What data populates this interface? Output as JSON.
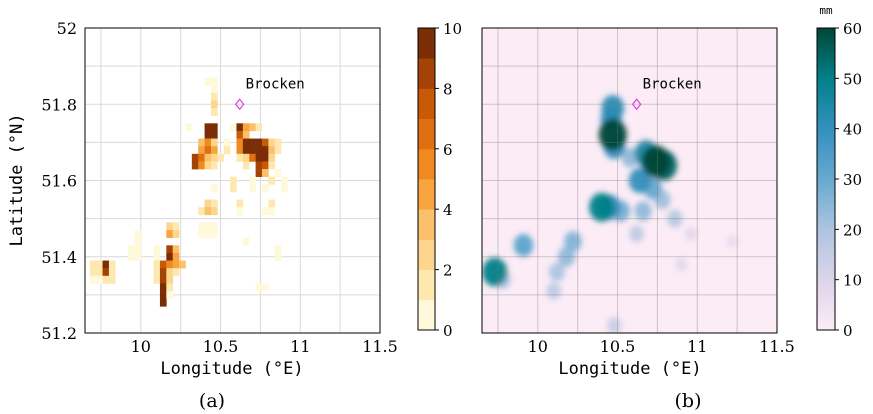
{
  "chart_data": [
    {
      "type": "heatmap",
      "panel_label": "(a)",
      "xlabel": "Longitude (°E)",
      "ylabel": "Latitude (°N)",
      "xlim": [
        9.65,
        11.5
      ],
      "ylim": [
        51.2,
        52.0
      ],
      "xticks": [
        {
          "v": 10,
          "t": "10"
        },
        {
          "v": 10.5,
          "t": "10.5"
        },
        {
          "v": 11,
          "t": "11"
        },
        {
          "v": 11.5,
          "t": "11.5"
        }
      ],
      "yticks": [
        {
          "v": 51.2,
          "t": "51.2"
        },
        {
          "v": 51.4,
          "t": "51.4"
        },
        {
          "v": 51.6,
          "t": "51.6"
        },
        {
          "v": 51.8,
          "t": "51.8"
        },
        {
          "v": 52.0,
          "t": "52"
        }
      ],
      "grid": true,
      "colorbar": {
        "range": [
          0,
          10
        ],
        "ticks": [
          0,
          2,
          4,
          6,
          8,
          10
        ],
        "unit": "",
        "palette": "orange-brown"
      },
      "cell_size": {
        "dlon": 0.04,
        "dlat": 0.02
      },
      "cells": [
        {
          "lon": 10.42,
          "lat": 51.86,
          "value": 1
        },
        {
          "lon": 10.46,
          "lat": 51.86,
          "value": 1
        },
        {
          "lon": 10.46,
          "lat": 51.84,
          "value": 1
        },
        {
          "lon": 10.46,
          "lat": 51.82,
          "value": 2
        },
        {
          "lon": 10.46,
          "lat": 51.8,
          "value": 3
        },
        {
          "lon": 10.46,
          "lat": 51.78,
          "value": 2
        },
        {
          "lon": 10.3,
          "lat": 51.74,
          "value": 1
        },
        {
          "lon": 10.42,
          "lat": 51.74,
          "value": 10
        },
        {
          "lon": 10.46,
          "lat": 51.74,
          "value": 10
        },
        {
          "lon": 10.58,
          "lat": 51.74,
          "value": 1
        },
        {
          "lon": 10.62,
          "lat": 51.74,
          "value": 10
        },
        {
          "lon": 10.66,
          "lat": 51.74,
          "value": 5
        },
        {
          "lon": 10.7,
          "lat": 51.74,
          "value": 4
        },
        {
          "lon": 10.74,
          "lat": 51.74,
          "value": 2
        },
        {
          "lon": 10.42,
          "lat": 51.72,
          "value": 10
        },
        {
          "lon": 10.46,
          "lat": 51.72,
          "value": 10
        },
        {
          "lon": 10.62,
          "lat": 51.72,
          "value": 8
        },
        {
          "lon": 10.66,
          "lat": 51.72,
          "value": 4
        },
        {
          "lon": 10.38,
          "lat": 51.7,
          "value": 4
        },
        {
          "lon": 10.42,
          "lat": 51.7,
          "value": 6
        },
        {
          "lon": 10.46,
          "lat": 51.7,
          "value": 3
        },
        {
          "lon": 10.54,
          "lat": 51.7,
          "value": 1
        },
        {
          "lon": 10.62,
          "lat": 51.7,
          "value": 6
        },
        {
          "lon": 10.66,
          "lat": 51.7,
          "value": 10
        },
        {
          "lon": 10.7,
          "lat": 51.7,
          "value": 10
        },
        {
          "lon": 10.74,
          "lat": 51.7,
          "value": 10
        },
        {
          "lon": 10.78,
          "lat": 51.7,
          "value": 8
        },
        {
          "lon": 10.82,
          "lat": 51.7,
          "value": 3
        },
        {
          "lon": 10.86,
          "lat": 51.7,
          "value": 2
        },
        {
          "lon": 10.38,
          "lat": 51.68,
          "value": 5
        },
        {
          "lon": 10.42,
          "lat": 51.68,
          "value": 7
        },
        {
          "lon": 10.46,
          "lat": 51.68,
          "value": 5
        },
        {
          "lon": 10.54,
          "lat": 51.68,
          "value": 2
        },
        {
          "lon": 10.62,
          "lat": 51.68,
          "value": 6
        },
        {
          "lon": 10.66,
          "lat": 51.68,
          "value": 10
        },
        {
          "lon": 10.7,
          "lat": 51.68,
          "value": 10
        },
        {
          "lon": 10.74,
          "lat": 51.68,
          "value": 10
        },
        {
          "lon": 10.78,
          "lat": 51.68,
          "value": 10
        },
        {
          "lon": 10.82,
          "lat": 51.68,
          "value": 4
        },
        {
          "lon": 10.86,
          "lat": 51.68,
          "value": 2
        },
        {
          "lon": 10.34,
          "lat": 51.66,
          "value": 9
        },
        {
          "lon": 10.38,
          "lat": 51.66,
          "value": 7
        },
        {
          "lon": 10.42,
          "lat": 51.66,
          "value": 4
        },
        {
          "lon": 10.46,
          "lat": 51.66,
          "value": 3
        },
        {
          "lon": 10.5,
          "lat": 51.66,
          "value": 2
        },
        {
          "lon": 10.62,
          "lat": 51.66,
          "value": 2
        },
        {
          "lon": 10.66,
          "lat": 51.66,
          "value": 3
        },
        {
          "lon": 10.7,
          "lat": 51.66,
          "value": 7
        },
        {
          "lon": 10.74,
          "lat": 51.66,
          "value": 10
        },
        {
          "lon": 10.78,
          "lat": 51.66,
          "value": 10
        },
        {
          "lon": 10.82,
          "lat": 51.66,
          "value": 3
        },
        {
          "lon": 10.34,
          "lat": 51.64,
          "value": 9
        },
        {
          "lon": 10.38,
          "lat": 51.64,
          "value": 6
        },
        {
          "lon": 10.42,
          "lat": 51.64,
          "value": 3
        },
        {
          "lon": 10.46,
          "lat": 51.64,
          "value": 2
        },
        {
          "lon": 10.66,
          "lat": 51.64,
          "value": 2
        },
        {
          "lon": 10.74,
          "lat": 51.64,
          "value": 9
        },
        {
          "lon": 10.78,
          "lat": 51.64,
          "value": 8
        },
        {
          "lon": 10.82,
          "lat": 51.64,
          "value": 2
        },
        {
          "lon": 10.74,
          "lat": 51.62,
          "value": 9
        },
        {
          "lon": 10.78,
          "lat": 51.62,
          "value": 4
        },
        {
          "lon": 10.86,
          "lat": 51.62,
          "value": 1
        },
        {
          "lon": 10.58,
          "lat": 51.6,
          "value": 2
        },
        {
          "lon": 10.7,
          "lat": 51.6,
          "value": 1
        },
        {
          "lon": 10.82,
          "lat": 51.6,
          "value": 2
        },
        {
          "lon": 10.9,
          "lat": 51.6,
          "value": 1
        },
        {
          "lon": 10.46,
          "lat": 51.58,
          "value": 1
        },
        {
          "lon": 10.58,
          "lat": 51.58,
          "value": 2
        },
        {
          "lon": 10.7,
          "lat": 51.58,
          "value": 1
        },
        {
          "lon": 10.78,
          "lat": 51.58,
          "value": 1
        },
        {
          "lon": 10.9,
          "lat": 51.58,
          "value": 1
        },
        {
          "lon": 10.42,
          "lat": 51.54,
          "value": 3
        },
        {
          "lon": 10.46,
          "lat": 51.54,
          "value": 2
        },
        {
          "lon": 10.62,
          "lat": 51.54,
          "value": 2
        },
        {
          "lon": 10.82,
          "lat": 51.54,
          "value": 2
        },
        {
          "lon": 10.38,
          "lat": 51.52,
          "value": 2
        },
        {
          "lon": 10.42,
          "lat": 51.52,
          "value": 4
        },
        {
          "lon": 10.46,
          "lat": 51.52,
          "value": 3
        },
        {
          "lon": 10.62,
          "lat": 51.52,
          "value": 1
        },
        {
          "lon": 10.78,
          "lat": 51.52,
          "value": 1
        },
        {
          "lon": 10.82,
          "lat": 51.52,
          "value": 1
        },
        {
          "lon": 10.38,
          "lat": 51.48,
          "value": 1
        },
        {
          "lon": 10.42,
          "lat": 51.48,
          "value": 1
        },
        {
          "lon": 10.46,
          "lat": 51.48,
          "value": 1
        },
        {
          "lon": 10.38,
          "lat": 51.46,
          "value": 1
        },
        {
          "lon": 10.42,
          "lat": 51.46,
          "value": 1
        },
        {
          "lon": 10.46,
          "lat": 51.46,
          "value": 1
        },
        {
          "lon": 10.18,
          "lat": 51.48,
          "value": 3
        },
        {
          "lon": 10.22,
          "lat": 51.48,
          "value": 2
        },
        {
          "lon": 10.18,
          "lat": 51.46,
          "value": 5
        },
        {
          "lon": 10.22,
          "lat": 51.46,
          "value": 3
        },
        {
          "lon": 9.98,
          "lat": 51.46,
          "value": 1
        },
        {
          "lon": 9.98,
          "lat": 51.44,
          "value": 1
        },
        {
          "lon": 10.66,
          "lat": 51.44,
          "value": 1
        },
        {
          "lon": 9.94,
          "lat": 51.42,
          "value": 1
        },
        {
          "lon": 9.98,
          "lat": 51.42,
          "value": 1
        },
        {
          "lon": 10.1,
          "lat": 51.42,
          "value": 1
        },
        {
          "lon": 10.18,
          "lat": 51.42,
          "value": 9
        },
        {
          "lon": 10.22,
          "lat": 51.42,
          "value": 4
        },
        {
          "lon": 10.86,
          "lat": 51.42,
          "value": 1
        },
        {
          "lon": 9.94,
          "lat": 51.4,
          "value": 1
        },
        {
          "lon": 9.98,
          "lat": 51.4,
          "value": 1
        },
        {
          "lon": 10.1,
          "lat": 51.4,
          "value": 1
        },
        {
          "lon": 10.18,
          "lat": 51.4,
          "value": 10
        },
        {
          "lon": 10.22,
          "lat": 51.4,
          "value": 5
        },
        {
          "lon": 10.86,
          "lat": 51.4,
          "value": 1
        },
        {
          "lon": 10.1,
          "lat": 51.38,
          "value": 2
        },
        {
          "lon": 10.14,
          "lat": 51.38,
          "value": 8
        },
        {
          "lon": 10.18,
          "lat": 51.38,
          "value": 6
        },
        {
          "lon": 10.22,
          "lat": 51.38,
          "value": 5
        },
        {
          "lon": 10.26,
          "lat": 51.38,
          "value": 4
        },
        {
          "lon": 9.7,
          "lat": 51.38,
          "value": 2
        },
        {
          "lon": 9.74,
          "lat": 51.38,
          "value": 2
        },
        {
          "lon": 9.78,
          "lat": 51.38,
          "value": 10
        },
        {
          "lon": 9.82,
          "lat": 51.38,
          "value": 2
        },
        {
          "lon": 9.7,
          "lat": 51.36,
          "value": 2
        },
        {
          "lon": 9.74,
          "lat": 51.36,
          "value": 2
        },
        {
          "lon": 9.78,
          "lat": 51.36,
          "value": 9
        },
        {
          "lon": 9.82,
          "lat": 51.36,
          "value": 2
        },
        {
          "lon": 10.1,
          "lat": 51.36,
          "value": 2
        },
        {
          "lon": 10.14,
          "lat": 51.36,
          "value": 9
        },
        {
          "lon": 10.18,
          "lat": 51.36,
          "value": 3
        },
        {
          "lon": 10.22,
          "lat": 51.36,
          "value": 2
        },
        {
          "lon": 9.7,
          "lat": 51.34,
          "value": 1
        },
        {
          "lon": 9.74,
          "lat": 51.34,
          "value": 1
        },
        {
          "lon": 9.78,
          "lat": 51.34,
          "value": 2
        },
        {
          "lon": 9.82,
          "lat": 51.34,
          "value": 2
        },
        {
          "lon": 10.1,
          "lat": 51.34,
          "value": 2
        },
        {
          "lon": 10.14,
          "lat": 51.34,
          "value": 9
        },
        {
          "lon": 10.18,
          "lat": 51.34,
          "value": 3
        },
        {
          "lon": 10.14,
          "lat": 51.32,
          "value": 10
        },
        {
          "lon": 10.18,
          "lat": 51.32,
          "value": 2
        },
        {
          "lon": 10.74,
          "lat": 51.32,
          "value": 1
        },
        {
          "lon": 10.78,
          "lat": 51.32,
          "value": 1
        },
        {
          "lon": 10.14,
          "lat": 51.3,
          "value": 10
        },
        {
          "lon": 10.18,
          "lat": 51.3,
          "value": 1
        },
        {
          "lon": 10.14,
          "lat": 51.28,
          "value": 10
        }
      ],
      "annotation": {
        "text": "Brocken",
        "lon": 10.62,
        "lat": 51.8,
        "marker": "diamond",
        "color": "#e23fe2"
      }
    },
    {
      "type": "heatmap",
      "panel_label": "(b)",
      "xlabel": "Longitude (°E)",
      "ylabel": "",
      "xlim": [
        9.65,
        11.5
      ],
      "ylim": [
        51.2,
        52.0
      ],
      "xticks": [
        {
          "v": 10,
          "t": "10"
        },
        {
          "v": 10.5,
          "t": "10.5"
        },
        {
          "v": 11,
          "t": "11"
        },
        {
          "v": 11.5,
          "t": "11.5"
        }
      ],
      "grid": true,
      "colorbar": {
        "range": [
          0,
          60
        ],
        "ticks": [
          0,
          10,
          20,
          30,
          40,
          50,
          60
        ],
        "unit": "mm",
        "palette": "pink-blue-green"
      },
      "blobs": [
        {
          "lon": 10.47,
          "lat": 51.79,
          "value": 42
        },
        {
          "lon": 10.46,
          "lat": 51.76,
          "value": 38
        },
        {
          "lon": 10.47,
          "lat": 51.72,
          "value": 60
        },
        {
          "lon": 10.48,
          "lat": 51.69,
          "value": 40
        },
        {
          "lon": 10.58,
          "lat": 51.66,
          "value": 24
        },
        {
          "lon": 10.68,
          "lat": 51.67,
          "value": 45
        },
        {
          "lon": 10.74,
          "lat": 51.65,
          "value": 60
        },
        {
          "lon": 10.79,
          "lat": 51.64,
          "value": 55
        },
        {
          "lon": 10.64,
          "lat": 51.6,
          "value": 40
        },
        {
          "lon": 10.72,
          "lat": 51.58,
          "value": 30
        },
        {
          "lon": 10.78,
          "lat": 51.55,
          "value": 22
        },
        {
          "lon": 10.86,
          "lat": 51.5,
          "value": 18
        },
        {
          "lon": 10.4,
          "lat": 51.53,
          "value": 50
        },
        {
          "lon": 10.45,
          "lat": 51.53,
          "value": 40
        },
        {
          "lon": 10.52,
          "lat": 51.52,
          "value": 28
        },
        {
          "lon": 10.66,
          "lat": 51.52,
          "value": 24
        },
        {
          "lon": 10.62,
          "lat": 51.46,
          "value": 16
        },
        {
          "lon": 10.22,
          "lat": 51.44,
          "value": 26
        },
        {
          "lon": 10.18,
          "lat": 51.4,
          "value": 24
        },
        {
          "lon": 10.12,
          "lat": 51.36,
          "value": 20
        },
        {
          "lon": 10.1,
          "lat": 51.31,
          "value": 16
        },
        {
          "lon": 9.91,
          "lat": 51.43,
          "value": 32
        },
        {
          "lon": 9.73,
          "lat": 51.36,
          "value": 50
        },
        {
          "lon": 9.78,
          "lat": 51.34,
          "value": 20
        },
        {
          "lon": 10.48,
          "lat": 51.22,
          "value": 14
        },
        {
          "lon": 10.9,
          "lat": 51.38,
          "value": 8
        },
        {
          "lon": 10.96,
          "lat": 51.46,
          "value": 8
        },
        {
          "lon": 11.22,
          "lat": 51.44,
          "value": 6
        }
      ],
      "annotation": {
        "text": "Brocken",
        "lon": 10.62,
        "lat": 51.8,
        "marker": "diamond",
        "color": "#e23fe2"
      }
    }
  ]
}
